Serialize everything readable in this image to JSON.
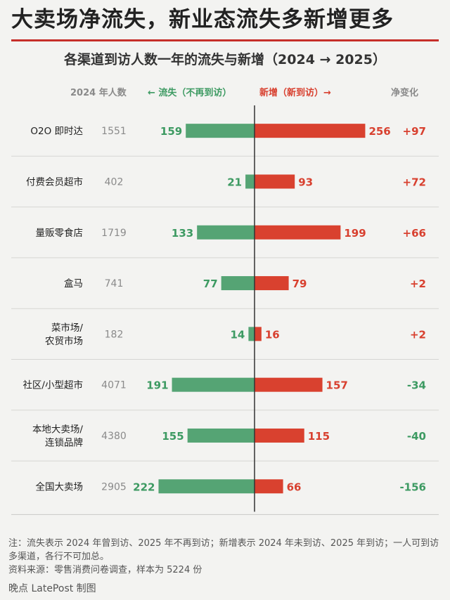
{
  "header": {
    "title": "大卖场净流失，新业态流失多新增更多",
    "subtitle": "各渠道到访人数一年的流失与新增（2024 → 2025）"
  },
  "columns": {
    "count": "2024 年人数",
    "loss": "← 流失（不再到访）",
    "gain": "新增（新到访）→",
    "net": "净变化"
  },
  "colors": {
    "loss": "#55a474",
    "gain": "#d9412f",
    "loss_text": "#3d9a62",
    "gain_text": "#d8402f",
    "accent": "#c62f2a"
  },
  "chart_data": {
    "type": "bar",
    "title": "各渠道到访人数一年的流失与新增（2024 → 2025）",
    "categories": [
      "O2O 即时达",
      "付费会员超市",
      "量贩零食店",
      "盒马",
      "菜市场/\n农贸市场",
      "社区/小型超市",
      "本地大卖场/\n连锁品牌",
      "全国大卖场"
    ],
    "base_2024": [
      1551,
      402,
      1719,
      741,
      182,
      4071,
      4380,
      2905
    ],
    "series": [
      {
        "name": "流失（不再到访）",
        "values": [
          159,
          21,
          133,
          77,
          14,
          191,
          155,
          222
        ]
      },
      {
        "name": "新增（新到访）",
        "values": [
          256,
          93,
          199,
          79,
          16,
          157,
          115,
          66
        ]
      }
    ],
    "net_labels": [
      "+97",
      "+72",
      "+66",
      "+2",
      "+2",
      "-34",
      "-40",
      "-156"
    ],
    "net": [
      97,
      72,
      66,
      2,
      2,
      -34,
      -40,
      -156
    ],
    "legend": "top"
  },
  "footer": {
    "note": "注：流失表示 2024 年曾到访、2025 年不再到访；新增表示 2024 年未到访、2025 年到访；一人可到访多渠道，各行不可加总。",
    "source": "资料来源：零售消费问卷调查，样本为 5224 份",
    "credit": "晚点 LatePost 制图"
  }
}
